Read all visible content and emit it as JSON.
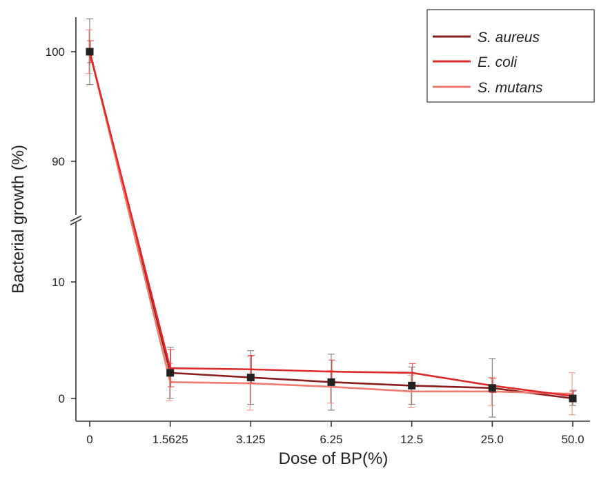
{
  "chart_data": {
    "type": "line",
    "xlabel": "Dose of BP(%)",
    "ylabel": "Bacterial growth (%)",
    "categories": [
      "0",
      "1.5625",
      "3.125",
      "6.25",
      "12.5",
      "25.0",
      "50.0"
    ],
    "y_axis_break": {
      "lower_range": [
        -2,
        15
      ],
      "upper_range": [
        84,
        103
      ]
    },
    "y_ticks": [
      0,
      10,
      90,
      100
    ],
    "y_tick_labels": [
      "0",
      "10",
      "90",
      "100"
    ],
    "legend_position": "top-right",
    "grid": false,
    "series": [
      {
        "name": "S. aureus",
        "color": "#8b1c1c",
        "values": [
          100,
          2.2,
          1.8,
          1.4,
          1.1,
          0.9,
          0
        ],
        "errors": [
          3.0,
          2.2,
          2.3,
          2.4,
          1.6,
          2.5,
          0.6
        ]
      },
      {
        "name": "E. coli",
        "color": "#e02828",
        "values": [
          100,
          2.6,
          2.5,
          2.3,
          2.2,
          1.1,
          0.2
        ],
        "errors": [
          1.0,
          1.6,
          1.2,
          1.0,
          0.8,
          0.6,
          0.5
        ]
      },
      {
        "name": "S. mutans",
        "color": "#f07a6e",
        "values": [
          100,
          1.4,
          1.3,
          1.0,
          0.6,
          0.6,
          0.4
        ],
        "errors": [
          2.0,
          1.6,
          2.3,
          1.4,
          1.4,
          1.2,
          1.8
        ]
      }
    ]
  }
}
